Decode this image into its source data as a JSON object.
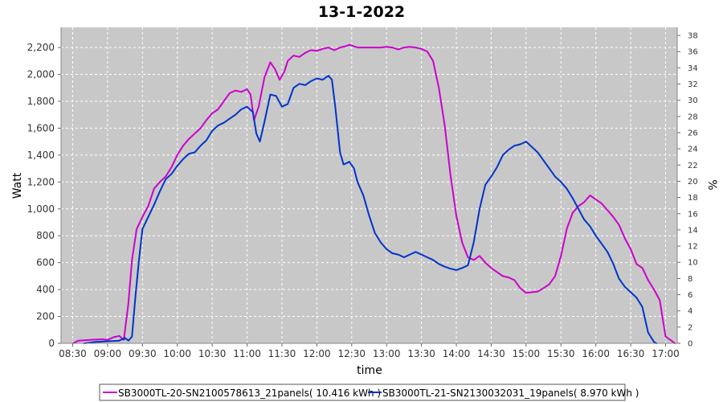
{
  "chart_data": {
    "type": "line",
    "title": "13-1-2022",
    "xlabel": "time",
    "ylabel": "Watt",
    "y2label": "%",
    "xlim": [
      "08:20",
      "17:10"
    ],
    "ylim": [
      0,
      2350
    ],
    "y2lim": [
      0,
      39
    ],
    "x_ticks": [
      "08:30",
      "09:00",
      "09:30",
      "10:00",
      "10:30",
      "11:00",
      "11:30",
      "12:00",
      "12:30",
      "13:00",
      "13:30",
      "14:00",
      "14:30",
      "15:00",
      "15:30",
      "16:00",
      "16:30",
      "17:00"
    ],
    "y_ticks": [
      "0",
      "200",
      "400",
      "600",
      "800",
      "1,000",
      "1,200",
      "1,400",
      "1,600",
      "1,800",
      "2,000",
      "2,200"
    ],
    "y2_ticks": [
      "0",
      "2",
      "4",
      "6",
      "8",
      "10",
      "12",
      "14",
      "16",
      "18",
      "20",
      "22",
      "24",
      "26",
      "28",
      "30",
      "32",
      "34",
      "36",
      "38"
    ],
    "grid": true,
    "legend_position": "bottom",
    "colors": {
      "plot_bg": "#c8c8c8",
      "grid": "#ffffff",
      "series1": "#cc00cc",
      "series2": "#0033cc"
    },
    "series": [
      {
        "name": "SB3000TL-20-SN2100578613_21panels( 10.416 kWh )",
        "color": "#cc00cc",
        "points": [
          [
            "08:30",
            0
          ],
          [
            "08:35",
            20
          ],
          [
            "08:45",
            25
          ],
          [
            "08:55",
            30
          ],
          [
            "09:00",
            25
          ],
          [
            "09:05",
            45
          ],
          [
            "09:10",
            55
          ],
          [
            "09:14",
            25
          ],
          [
            "09:18",
            300
          ],
          [
            "09:21",
            620
          ],
          [
            "09:25",
            850
          ],
          [
            "09:30",
            940
          ],
          [
            "09:35",
            1020
          ],
          [
            "09:40",
            1150
          ],
          [
            "09:45",
            1200
          ],
          [
            "09:50",
            1240
          ],
          [
            "09:55",
            1310
          ],
          [
            "10:00",
            1400
          ],
          [
            "10:05",
            1470
          ],
          [
            "10:10",
            1520
          ],
          [
            "10:15",
            1560
          ],
          [
            "10:20",
            1600
          ],
          [
            "10:25",
            1660
          ],
          [
            "10:30",
            1710
          ],
          [
            "10:35",
            1740
          ],
          [
            "10:40",
            1800
          ],
          [
            "10:45",
            1860
          ],
          [
            "10:50",
            1880
          ],
          [
            "10:55",
            1870
          ],
          [
            "11:00",
            1890
          ],
          [
            "11:03",
            1850
          ],
          [
            "11:06",
            1660
          ],
          [
            "11:10",
            1760
          ],
          [
            "11:15",
            1980
          ],
          [
            "11:20",
            2090
          ],
          [
            "11:24",
            2040
          ],
          [
            "11:28",
            1960
          ],
          [
            "11:32",
            2020
          ],
          [
            "11:35",
            2100
          ],
          [
            "11:40",
            2140
          ],
          [
            "11:45",
            2130
          ],
          [
            "11:50",
            2160
          ],
          [
            "11:55",
            2180
          ],
          [
            "12:00",
            2175
          ],
          [
            "12:05",
            2190
          ],
          [
            "12:10",
            2200
          ],
          [
            "12:15",
            2180
          ],
          [
            "12:20",
            2200
          ],
          [
            "12:25",
            2210
          ],
          [
            "12:28",
            2220
          ],
          [
            "12:35",
            2200
          ],
          [
            "12:45",
            2200
          ],
          [
            "12:55",
            2200
          ],
          [
            "13:00",
            2205
          ],
          [
            "13:05",
            2200
          ],
          [
            "13:10",
            2185
          ],
          [
            "13:15",
            2200
          ],
          [
            "13:20",
            2205
          ],
          [
            "13:25",
            2200
          ],
          [
            "13:30",
            2190
          ],
          [
            "13:35",
            2170
          ],
          [
            "13:40",
            2100
          ],
          [
            "13:45",
            1900
          ],
          [
            "13:50",
            1620
          ],
          [
            "13:55",
            1250
          ],
          [
            "14:00",
            950
          ],
          [
            "14:05",
            750
          ],
          [
            "14:10",
            640
          ],
          [
            "14:15",
            620
          ],
          [
            "14:20",
            650
          ],
          [
            "14:25",
            600
          ],
          [
            "14:30",
            560
          ],
          [
            "14:35",
            530
          ],
          [
            "14:40",
            500
          ],
          [
            "14:45",
            490
          ],
          [
            "14:50",
            470
          ],
          [
            "14:55",
            410
          ],
          [
            "15:00",
            375
          ],
          [
            "15:05",
            380
          ],
          [
            "15:10",
            385
          ],
          [
            "15:15",
            410
          ],
          [
            "15:20",
            440
          ],
          [
            "15:25",
            500
          ],
          [
            "15:30",
            650
          ],
          [
            "15:35",
            850
          ],
          [
            "15:40",
            970
          ],
          [
            "15:45",
            1020
          ],
          [
            "15:50",
            1050
          ],
          [
            "15:55",
            1100
          ],
          [
            "16:00",
            1070
          ],
          [
            "16:05",
            1040
          ],
          [
            "16:10",
            990
          ],
          [
            "16:15",
            940
          ],
          [
            "16:20",
            880
          ],
          [
            "16:25",
            780
          ],
          [
            "16:30",
            700
          ],
          [
            "16:35",
            590
          ],
          [
            "16:40",
            560
          ],
          [
            "16:45",
            470
          ],
          [
            "16:50",
            400
          ],
          [
            "16:55",
            320
          ],
          [
            "17:00",
            50
          ],
          [
            "17:05",
            20
          ],
          [
            "17:08",
            0
          ]
        ]
      },
      {
        "name": "SB3000TL-21-SN2130032031_19panels( 8.970 kWh )",
        "color": "#0033cc",
        "points": [
          [
            "08:40",
            0
          ],
          [
            "08:50",
            10
          ],
          [
            "09:00",
            15
          ],
          [
            "09:10",
            20
          ],
          [
            "09:15",
            40
          ],
          [
            "09:18",
            20
          ],
          [
            "09:21",
            50
          ],
          [
            "09:24",
            350
          ],
          [
            "09:27",
            620
          ],
          [
            "09:30",
            850
          ],
          [
            "09:35",
            940
          ],
          [
            "09:40",
            1030
          ],
          [
            "09:45",
            1130
          ],
          [
            "09:50",
            1220
          ],
          [
            "09:55",
            1260
          ],
          [
            "10:00",
            1320
          ],
          [
            "10:05",
            1370
          ],
          [
            "10:10",
            1410
          ],
          [
            "10:15",
            1420
          ],
          [
            "10:20",
            1470
          ],
          [
            "10:25",
            1510
          ],
          [
            "10:30",
            1580
          ],
          [
            "10:35",
            1620
          ],
          [
            "10:40",
            1640
          ],
          [
            "10:45",
            1670
          ],
          [
            "10:50",
            1700
          ],
          [
            "10:55",
            1740
          ],
          [
            "11:00",
            1760
          ],
          [
            "11:05",
            1720
          ],
          [
            "11:08",
            1560
          ],
          [
            "11:11",
            1500
          ],
          [
            "11:15",
            1650
          ],
          [
            "11:20",
            1850
          ],
          [
            "11:25",
            1840
          ],
          [
            "11:30",
            1760
          ],
          [
            "11:35",
            1780
          ],
          [
            "11:40",
            1900
          ],
          [
            "11:45",
            1930
          ],
          [
            "11:50",
            1920
          ],
          [
            "11:55",
            1950
          ],
          [
            "12:00",
            1970
          ],
          [
            "12:05",
            1960
          ],
          [
            "12:10",
            1990
          ],
          [
            "12:13",
            1960
          ],
          [
            "12:16",
            1750
          ],
          [
            "12:20",
            1420
          ],
          [
            "12:23",
            1330
          ],
          [
            "12:28",
            1350
          ],
          [
            "12:32",
            1300
          ],
          [
            "12:35",
            1200
          ],
          [
            "12:40",
            1100
          ],
          [
            "12:45",
            950
          ],
          [
            "12:50",
            820
          ],
          [
            "12:55",
            750
          ],
          [
            "13:00",
            700
          ],
          [
            "13:05",
            670
          ],
          [
            "13:10",
            660
          ],
          [
            "13:15",
            640
          ],
          [
            "13:20",
            660
          ],
          [
            "13:25",
            680
          ],
          [
            "13:30",
            660
          ],
          [
            "13:35",
            640
          ],
          [
            "13:40",
            620
          ],
          [
            "13:45",
            590
          ],
          [
            "13:50",
            570
          ],
          [
            "13:55",
            555
          ],
          [
            "14:00",
            545
          ],
          [
            "14:05",
            560
          ],
          [
            "14:10",
            580
          ],
          [
            "14:15",
            750
          ],
          [
            "14:20",
            1000
          ],
          [
            "14:25",
            1180
          ],
          [
            "14:30",
            1240
          ],
          [
            "14:35",
            1310
          ],
          [
            "14:40",
            1400
          ],
          [
            "14:45",
            1440
          ],
          [
            "14:50",
            1470
          ],
          [
            "14:55",
            1480
          ],
          [
            "15:00",
            1500
          ],
          [
            "15:05",
            1460
          ],
          [
            "15:10",
            1420
          ],
          [
            "15:15",
            1360
          ],
          [
            "15:20",
            1300
          ],
          [
            "15:25",
            1240
          ],
          [
            "15:30",
            1200
          ],
          [
            "15:35",
            1150
          ],
          [
            "15:40",
            1080
          ],
          [
            "15:45",
            1000
          ],
          [
            "15:50",
            920
          ],
          [
            "15:55",
            870
          ],
          [
            "16:00",
            800
          ],
          [
            "16:05",
            740
          ],
          [
            "16:10",
            680
          ],
          [
            "16:15",
            590
          ],
          [
            "16:20",
            480
          ],
          [
            "16:25",
            420
          ],
          [
            "16:30",
            380
          ],
          [
            "16:35",
            340
          ],
          [
            "16:40",
            270
          ],
          [
            "16:45",
            80
          ],
          [
            "16:50",
            10
          ],
          [
            "16:52",
            0
          ]
        ]
      }
    ]
  }
}
